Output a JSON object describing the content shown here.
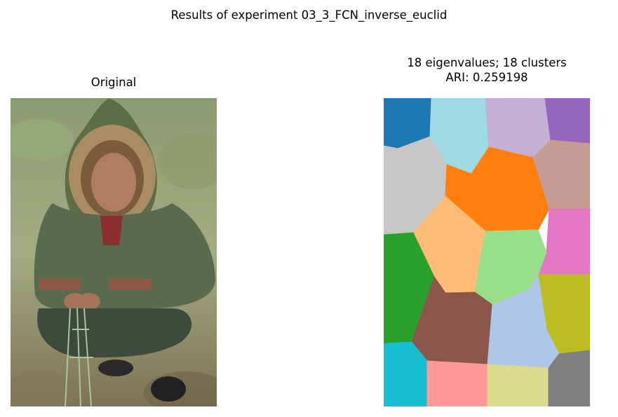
{
  "figure": {
    "suptitle": "Results of experiment 03_3_FCN_inverse_euclid"
  },
  "panels": {
    "left": {
      "title": "Original"
    },
    "right": {
      "title_line1": "18 eigenvalues; 18 clusters",
      "title_line2": "ARI: 0.259198"
    }
  },
  "chart_data": [
    {
      "type": "image",
      "title": "Original",
      "content": "photograph"
    },
    {
      "type": "heatmap",
      "title": "18 eigenvalues; 18 clusters\nARI: 0.259198",
      "n_eigenvalues": 18,
      "n_clusters": 18,
      "ari": 0.259198,
      "colormap": "tab20",
      "cluster_colors": [
        "#1f77b4",
        "#9edae5",
        "#c5b0d5",
        "#9467bd",
        "#c7c7c7",
        "#ff7f0e",
        "#c49c94",
        "#ffbb78",
        "#e377c2",
        "#2ca02c",
        "#98df8a",
        "#8c564b",
        "#bcbd22",
        "#aec7e8",
        "#17becf",
        "#ff9896",
        "#dbdb8d",
        "#7f7f7f"
      ]
    }
  ]
}
